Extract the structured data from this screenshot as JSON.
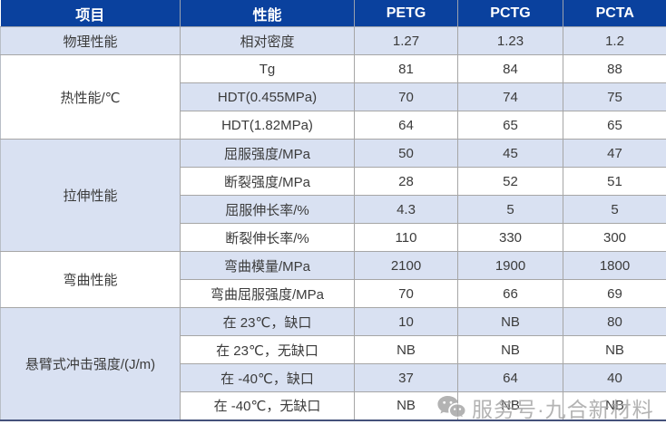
{
  "table": {
    "headers": [
      "项目",
      "性能",
      "PETG",
      "PCTG",
      "PCTA"
    ],
    "groups": [
      {
        "category": "物理性能",
        "rows": [
          {
            "property": "相对密度",
            "values": [
              "1.27",
              "1.23",
              "1.2"
            ]
          }
        ]
      },
      {
        "category": "热性能/℃",
        "rows": [
          {
            "property": "Tg",
            "values": [
              "81",
              "84",
              "88"
            ]
          },
          {
            "property": "HDT(0.455MPa)",
            "values": [
              "70",
              "74",
              "75"
            ]
          },
          {
            "property": "HDT(1.82MPa)",
            "values": [
              "64",
              "65",
              "65"
            ]
          }
        ]
      },
      {
        "category": "拉伸性能",
        "rows": [
          {
            "property": "屈服强度/MPa",
            "values": [
              "50",
              "45",
              "47"
            ]
          },
          {
            "property": "断裂强度/MPa",
            "values": [
              "28",
              "52",
              "51"
            ]
          },
          {
            "property": "屈服伸长率/%",
            "values": [
              "4.3",
              "5",
              "5"
            ]
          },
          {
            "property": "断裂伸长率/%",
            "values": [
              "110",
              "330",
              "300"
            ]
          }
        ]
      },
      {
        "category": "弯曲性能",
        "rows": [
          {
            "property": "弯曲模量/MPa",
            "values": [
              "2100",
              "1900",
              "1800"
            ]
          },
          {
            "property": "弯曲屈服强度/MPa",
            "values": [
              "70",
              "66",
              "69"
            ]
          }
        ]
      },
      {
        "category": "悬臂式冲击强度/(J/m)",
        "rows": [
          {
            "property": "在 23℃，缺口",
            "values": [
              "10",
              "NB",
              "80"
            ]
          },
          {
            "property": "在 23℃，无缺口",
            "values": [
              "NB",
              "NB",
              "NB"
            ]
          },
          {
            "property": "在 -40℃，缺口",
            "values": [
              "37",
              "64",
              "40"
            ]
          },
          {
            "property": "在 -40℃，无缺口",
            "values": [
              "NB",
              "NB",
              "NB"
            ]
          }
        ]
      }
    ]
  },
  "watermark": {
    "icon": "wechat-icon",
    "text": "服务号·九合新材料"
  },
  "colors": {
    "header_bg": "#0a419e",
    "header_text": "#ffffff",
    "band_light": "#d9e1f2",
    "band_white": "#ffffff",
    "border": "#a6a6a6",
    "body_text": "#3b3b3b",
    "bottom_border": "#44517b",
    "watermark_gray": "#a6a6a6"
  }
}
